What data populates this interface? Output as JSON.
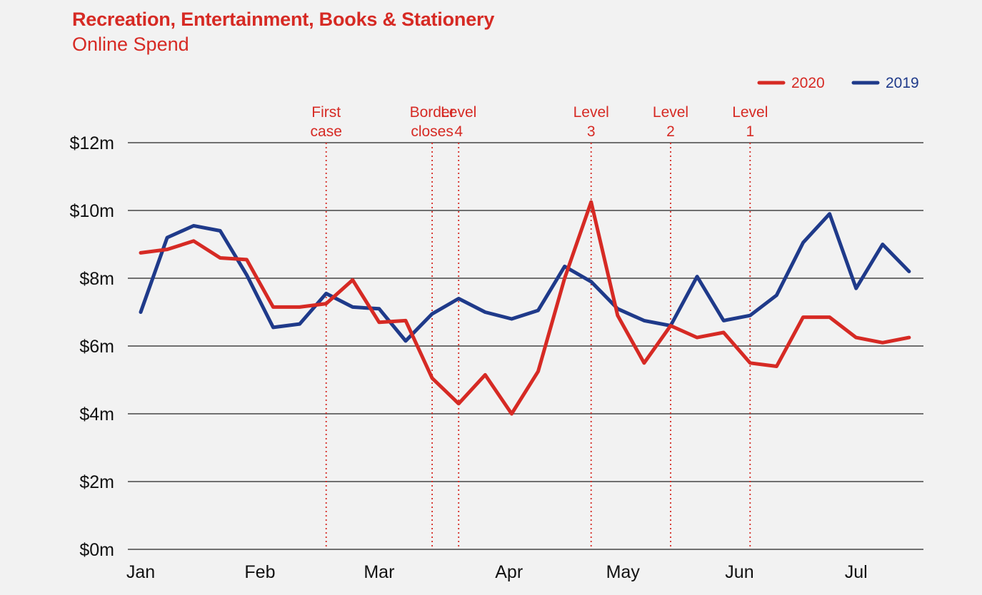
{
  "chart_data": {
    "type": "line",
    "title": "Recreation, Entertainment, Books & Stationery",
    "subtitle": "Online Spend",
    "ylim": [
      0,
      12
    ],
    "y_ticks": [
      0,
      2,
      4,
      6,
      8,
      10,
      12
    ],
    "y_tick_labels": [
      "$0m",
      "$2m",
      "$4m",
      "$6m",
      "$8m",
      "$10m",
      "$12m"
    ],
    "y_unit": "$m",
    "x_month_ticks": [
      {
        "label": "Jan",
        "week": 0
      },
      {
        "label": "Feb",
        "week": 4.5
      },
      {
        "label": "Mar",
        "week": 9
      },
      {
        "label": "Apr",
        "week": 13.9
      },
      {
        "label": "May",
        "week": 18.2
      },
      {
        "label": "Jun",
        "week": 22.6
      },
      {
        "label": "Jul",
        "week": 27
      }
    ],
    "x_range_weeks": [
      0,
      29
    ],
    "grid": {
      "horizontal": true,
      "vertical": false
    },
    "legend": {
      "placement": "top-right"
    },
    "events": [
      {
        "lines": [
          "First",
          "case"
        ],
        "week": 7
      },
      {
        "lines": [
          "Border",
          "closes"
        ],
        "week": 11
      },
      {
        "lines": [
          "Level",
          "4"
        ],
        "week": 12
      },
      {
        "lines": [
          "Level",
          "3"
        ],
        "week": 17
      },
      {
        "lines": [
          "Level",
          "2"
        ],
        "week": 20
      },
      {
        "lines": [
          "Level",
          "1"
        ],
        "week": 23
      }
    ],
    "series": [
      {
        "name": "2020",
        "color": "#d62a24",
        "values": [
          8.75,
          8.85,
          9.1,
          8.6,
          8.55,
          7.15,
          7.15,
          7.25,
          7.95,
          6.7,
          6.75,
          5.05,
          4.3,
          5.15,
          4.0,
          5.25,
          8.0,
          10.25,
          6.9,
          5.5,
          6.6,
          6.25,
          6.4,
          5.5,
          5.4,
          6.85,
          6.85,
          6.25,
          6.1,
          6.25
        ]
      },
      {
        "name": "2019",
        "color": "#1f3a8a",
        "values": [
          7.0,
          9.2,
          9.55,
          9.4,
          8.1,
          6.55,
          6.65,
          7.55,
          7.15,
          7.1,
          6.15,
          6.95,
          7.4,
          7.0,
          6.8,
          7.05,
          8.35,
          7.9,
          7.1,
          6.75,
          6.6,
          8.05,
          6.75,
          6.9,
          7.5,
          9.05,
          9.9,
          7.7,
          9.0,
          8.2
        ]
      }
    ]
  }
}
